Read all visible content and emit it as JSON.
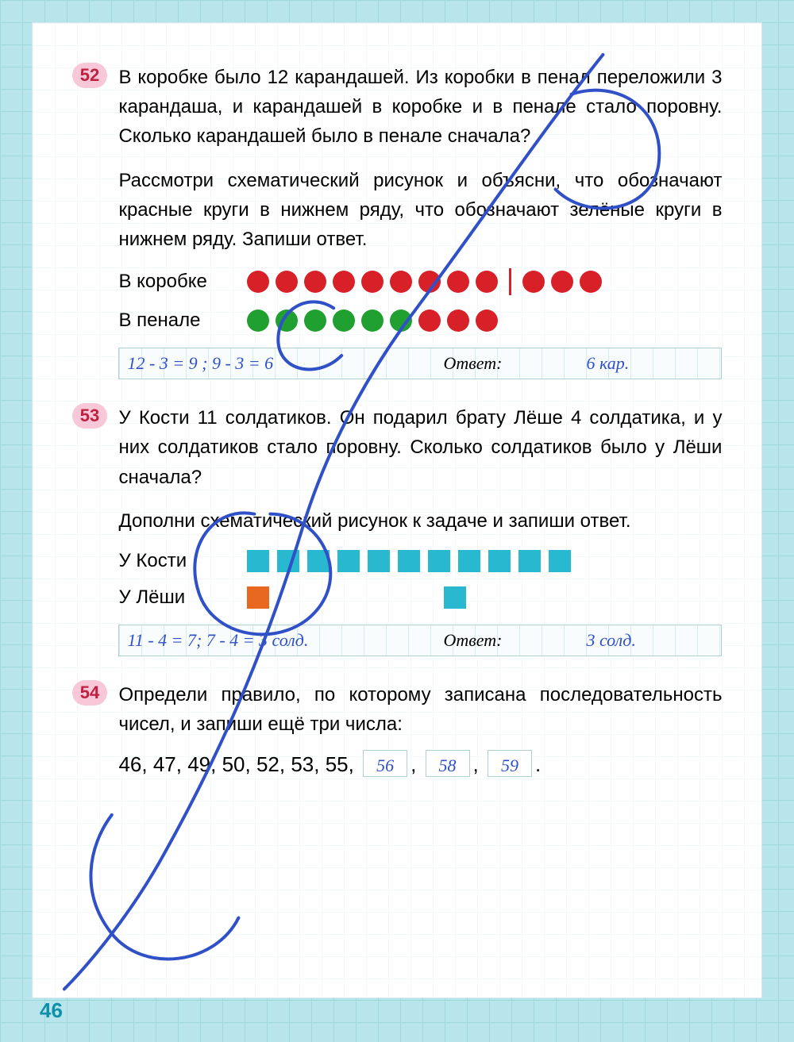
{
  "page_number": "46",
  "colors": {
    "red": "#d82028",
    "green": "#20a030",
    "cyan": "#28b8d0",
    "orange": "#e86820",
    "handwriting": "#3050c8",
    "badge_bg": "#f8c8d8",
    "badge_text": "#c02040"
  },
  "task52": {
    "num": "52",
    "p1": "В коробке было 12 карандашей. Из коробки в пенал переложили 3 карандаша, и карандашей в коробке и в пенале стало поровну. Сколько карандашей было в пенале сначала?",
    "p2": "Рассмотри схематический рисунок и объясни, что обозначают красные круги в нижнем ряду, что обозначают зелёные круги в нижнем ряду. Запиши ответ.",
    "row1_label": "В коробке",
    "row2_label": "В пенале",
    "row1": {
      "type": "circles",
      "colors": [
        "red",
        "red",
        "red",
        "red",
        "red",
        "red",
        "red",
        "red",
        "red",
        "|",
        "red",
        "red",
        "red"
      ]
    },
    "row2": {
      "type": "circles",
      "colors": [
        "green",
        "green",
        "green",
        "green",
        "green",
        "green",
        "red",
        "red",
        "red"
      ]
    },
    "hw_calc": "12 - 3 = 9 ;  9 - 3 = 6",
    "hw_ans_label": "Ответ:",
    "hw_ans": "6 кар."
  },
  "task53": {
    "num": "53",
    "p1": "У Кости 11 солдатиков. Он подарил брату Лёше 4 солдатика, и у них солдатиков стало поровну. Сколько солдатиков было у Лёши сначала?",
    "p2": "Дополни схематический рисунок к задаче и запиши ответ.",
    "row1_label": "У Кости",
    "row2_label": "У Лёши",
    "row1": {
      "type": "squares",
      "items": [
        "cyan",
        "cyan",
        "cyan",
        "cyan",
        "cyan",
        "cyan",
        "cyan",
        "cyan",
        "cyan",
        "cyan",
        "cyan"
      ]
    },
    "row2": {
      "type": "squares",
      "items": [
        "orange",
        "gap",
        "cyan"
      ]
    },
    "hw_calc": "11 - 4 = 7;  7 - 4 = 3 солд.",
    "hw_ans_label": "Ответ:",
    "hw_ans": "3 солд."
  },
  "task54": {
    "num": "54",
    "p1": "Определи правило, по которому записана последовательность чисел, и запиши ещё три числа:",
    "sequence_given": [
      "46",
      "47",
      "49",
      "50",
      "52",
      "53",
      "55"
    ],
    "sequence_answers": [
      "56",
      "58",
      "59"
    ],
    "trailing": "."
  }
}
